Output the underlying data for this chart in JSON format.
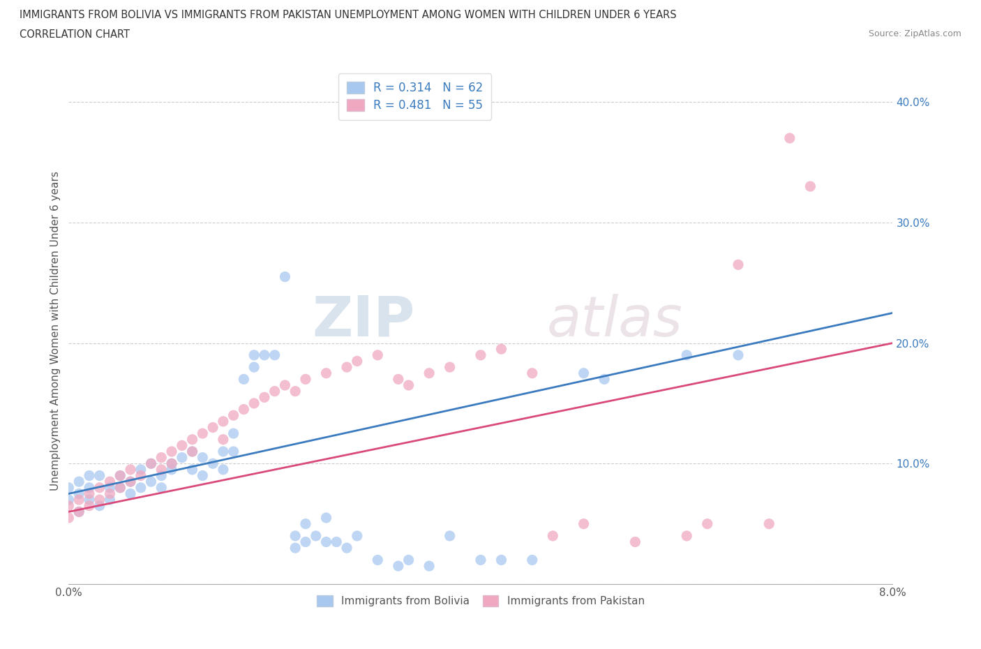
{
  "title_line1": "IMMIGRANTS FROM BOLIVIA VS IMMIGRANTS FROM PAKISTAN UNEMPLOYMENT AMONG WOMEN WITH CHILDREN UNDER 6 YEARS",
  "title_line2": "CORRELATION CHART",
  "source": "Source: ZipAtlas.com",
  "ylabel": "Unemployment Among Women with Children Under 6 years",
  "xlim": [
    0.0,
    0.08
  ],
  "ylim": [
    0.0,
    0.42
  ],
  "x_ticks": [
    0.0,
    0.01,
    0.02,
    0.03,
    0.04,
    0.05,
    0.06,
    0.07,
    0.08
  ],
  "x_tick_labels": [
    "0.0%",
    "",
    "",
    "",
    "",
    "",
    "",
    "",
    "8.0%"
  ],
  "y_ticks": [
    0.0,
    0.1,
    0.2,
    0.3,
    0.4
  ],
  "y_tick_labels": [
    "",
    "10.0%",
    "20.0%",
    "30.0%",
    "40.0%"
  ],
  "watermark_ZIP": "ZIP",
  "watermark_atlas": "atlas",
  "bolivia_color": "#a8c8f0",
  "pakistan_color": "#f0a8c0",
  "bolivia_line_color": "#3a7abf",
  "pakistan_line_color": "#d94a7a",
  "bolivia_R": 0.314,
  "bolivia_N": 62,
  "pakistan_R": 0.481,
  "pakistan_N": 55,
  "grid_color": "#cccccc",
  "background_color": "#ffffff",
  "legend_text_color": "#3a7abf",
  "bolivia_x": [
    0.0,
    0.0,
    0.001,
    0.001,
    0.001,
    0.002,
    0.002,
    0.002,
    0.003,
    0.003,
    0.004,
    0.004,
    0.005,
    0.005,
    0.006,
    0.006,
    0.007,
    0.007,
    0.008,
    0.008,
    0.009,
    0.009,
    0.01,
    0.01,
    0.011,
    0.012,
    0.012,
    0.013,
    0.013,
    0.014,
    0.015,
    0.015,
    0.016,
    0.016,
    0.017,
    0.018,
    0.018,
    0.019,
    0.02,
    0.021,
    0.022,
    0.022,
    0.023,
    0.023,
    0.024,
    0.025,
    0.025,
    0.026,
    0.027,
    0.028,
    0.03,
    0.032,
    0.033,
    0.035,
    0.037,
    0.04,
    0.042,
    0.045,
    0.05,
    0.052,
    0.06,
    0.065
  ],
  "bolivia_y": [
    0.07,
    0.08,
    0.06,
    0.085,
    0.075,
    0.09,
    0.07,
    0.08,
    0.065,
    0.09,
    0.08,
    0.07,
    0.09,
    0.08,
    0.085,
    0.075,
    0.095,
    0.08,
    0.1,
    0.085,
    0.09,
    0.08,
    0.1,
    0.095,
    0.105,
    0.11,
    0.095,
    0.105,
    0.09,
    0.1,
    0.11,
    0.095,
    0.125,
    0.11,
    0.17,
    0.18,
    0.19,
    0.19,
    0.19,
    0.255,
    0.03,
    0.04,
    0.035,
    0.05,
    0.04,
    0.035,
    0.055,
    0.035,
    0.03,
    0.04,
    0.02,
    0.015,
    0.02,
    0.015,
    0.04,
    0.02,
    0.02,
    0.02,
    0.175,
    0.17,
    0.19,
    0.19
  ],
  "pakistan_x": [
    0.0,
    0.0,
    0.001,
    0.001,
    0.002,
    0.002,
    0.003,
    0.003,
    0.004,
    0.004,
    0.005,
    0.005,
    0.006,
    0.006,
    0.007,
    0.008,
    0.009,
    0.009,
    0.01,
    0.01,
    0.011,
    0.012,
    0.012,
    0.013,
    0.014,
    0.015,
    0.015,
    0.016,
    0.017,
    0.018,
    0.019,
    0.02,
    0.021,
    0.022,
    0.023,
    0.025,
    0.027,
    0.028,
    0.03,
    0.032,
    0.033,
    0.035,
    0.037,
    0.04,
    0.042,
    0.045,
    0.047,
    0.05,
    0.055,
    0.06,
    0.062,
    0.065,
    0.068,
    0.07,
    0.072
  ],
  "pakistan_y": [
    0.065,
    0.055,
    0.07,
    0.06,
    0.075,
    0.065,
    0.08,
    0.07,
    0.085,
    0.075,
    0.09,
    0.08,
    0.095,
    0.085,
    0.09,
    0.1,
    0.105,
    0.095,
    0.11,
    0.1,
    0.115,
    0.12,
    0.11,
    0.125,
    0.13,
    0.135,
    0.12,
    0.14,
    0.145,
    0.15,
    0.155,
    0.16,
    0.165,
    0.16,
    0.17,
    0.175,
    0.18,
    0.185,
    0.19,
    0.17,
    0.165,
    0.175,
    0.18,
    0.19,
    0.195,
    0.175,
    0.04,
    0.05,
    0.035,
    0.04,
    0.05,
    0.265,
    0.05,
    0.37,
    0.33
  ],
  "bolivia_line_x0": 0.0,
  "bolivia_line_y0": 0.075,
  "bolivia_line_x1": 0.08,
  "bolivia_line_y1": 0.225,
  "pakistan_line_x0": 0.0,
  "pakistan_line_y0": 0.06,
  "pakistan_line_x1": 0.08,
  "pakistan_line_y1": 0.2
}
